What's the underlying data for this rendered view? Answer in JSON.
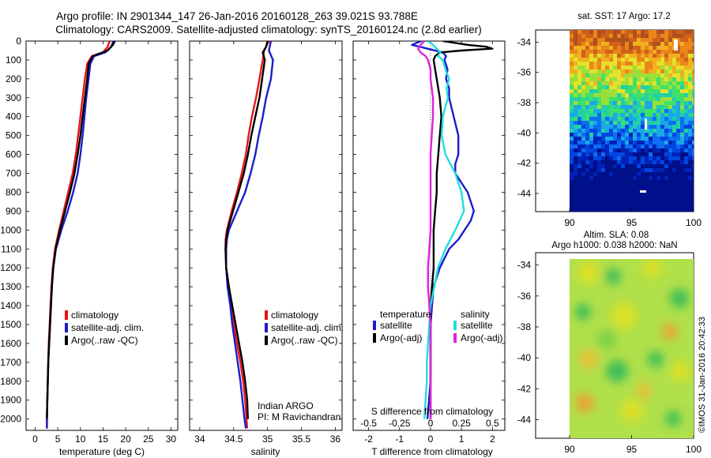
{
  "header": {
    "line1": "Argo profile: IN 2901344_147 26-Jan-2016 20160128_263 39.021S 93.788E",
    "line2": "Climatology: CARS2009. Satellite-adjusted climatology: synTS_20160124.nc (2.8d earlier)"
  },
  "colors": {
    "climatology": "#e8141b",
    "satellite": "#1c1ccc",
    "argo": "#000000",
    "sal_sat": "#22dddd",
    "sal_argo": "#dd22dd"
  },
  "shared_y_ticks": [
    "0",
    "100",
    "200",
    "300",
    "400",
    "500",
    "600",
    "700",
    "800",
    "900",
    "1000",
    "1100",
    "1200",
    "1300",
    "1400",
    "1500",
    "1600",
    "1700",
    "1800",
    "1900",
    "2000"
  ],
  "panels": {
    "temperature": {
      "xlabel": "temperature (deg C)",
      "xticks": [
        "0",
        "5",
        "10",
        "15",
        "20",
        "25",
        "30"
      ],
      "legend": [
        "climatology",
        "satellite-adj. clim.",
        "Argo(..raw -QC)"
      ]
    },
    "salinity": {
      "xlabel": "salinity",
      "xticks": [
        "34",
        "34.5",
        "35",
        "35.5",
        "36"
      ],
      "legend": [
        "climatology",
        "satellite-adj. clim.",
        "Argo(..raw -QC)"
      ],
      "note1": "Indian ARGO",
      "note2": "PI: M Ravichandran"
    },
    "difference": {
      "xlabel": "T difference from climatology",
      "xticks": [
        "-2",
        "-1",
        "0",
        "1",
        "2"
      ],
      "top_label": "S difference from climatology",
      "top_ticks": [
        "-0.5",
        "-0.25",
        "0",
        "0.25",
        "0.5"
      ],
      "legend_t_title": "temperature",
      "legend_s_title": "salinity",
      "legend_t": [
        "satellite",
        "Argo(-adj)"
      ],
      "legend_s": [
        "satellite",
        "Argo(-adj)"
      ]
    },
    "sst_map": {
      "title": "sat. SST: 17 Argo: 17.2",
      "yticks": [
        "-34",
        "-36",
        "-38",
        "-40",
        "-42",
        "-44"
      ],
      "xticks": [
        "90",
        "95",
        "100"
      ]
    },
    "sla_map": {
      "title1": "Altim. SLA: 0.08",
      "title2": "Argo h1000: 0.038 h2000: NaN",
      "yticks": [
        "-34",
        "-36",
        "-38",
        "-40",
        "-42",
        "-44"
      ],
      "xticks": [
        "90",
        "95",
        "100"
      ]
    }
  },
  "footer_stamp": "©IMOS 31-Jan-2016 20:42:33",
  "chart_data": [
    {
      "type": "line",
      "title": "",
      "xlabel": "temperature (deg C)",
      "ylabel": "",
      "xlim": [
        -2,
        31.5
      ],
      "ylim": [
        2060,
        0
      ],
      "series": [
        {
          "name": "climatology",
          "color": "#e8141b",
          "y": [
            0,
            30,
            60,
            80,
            120,
            200,
            300,
            400,
            500,
            600,
            700,
            800,
            900,
            1000,
            1100,
            1200,
            1300,
            1400,
            1500,
            1600,
            1700,
            1800,
            1900,
            2000,
            2050
          ],
          "x": [
            16.5,
            16,
            15,
            12.5,
            11.5,
            11,
            10.5,
            10,
            9.5,
            9,
            8.3,
            7.3,
            6.3,
            5.3,
            4.4,
            3.9,
            3.6,
            3.4,
            3.2,
            3,
            2.9,
            2.8,
            2.7,
            2.6,
            2.6
          ]
        },
        {
          "name": "satellite-adj. clim.",
          "color": "#1c1ccc",
          "y": [
            0,
            30,
            60,
            80,
            120,
            200,
            300,
            400,
            500,
            600,
            700,
            800,
            900,
            1000,
            1100,
            1200,
            1300,
            1400,
            1500,
            1600,
            1700,
            1800,
            1900,
            2000,
            2050
          ],
          "x": [
            17.3,
            16.8,
            15.5,
            13,
            12.2,
            11.8,
            11.3,
            10.9,
            10.5,
            10,
            9.4,
            8.4,
            7.2,
            5.8,
            4.6,
            4,
            3.7,
            3.5,
            3.3,
            3.1,
            2.9,
            2.8,
            2.7,
            2.6,
            2.6
          ]
        },
        {
          "name": "Argo(..raw -QC)",
          "color": "#000000",
          "y": [
            0,
            20,
            50,
            80,
            120,
            200,
            300,
            400,
            500,
            600,
            700,
            800,
            900,
            1000,
            1100,
            1200,
            1300,
            1400,
            1500,
            1600,
            1700,
            1800,
            1900,
            2000
          ],
          "x": [
            17.6,
            17.2,
            16,
            12.7,
            11.8,
            11.5,
            11,
            10.5,
            10,
            9.4,
            8.7,
            7.7,
            6.6,
            5.5,
            4.5,
            4,
            3.7,
            3.5,
            3.3,
            3.1,
            2.9,
            2.8,
            2.7,
            2.6
          ]
        }
      ]
    },
    {
      "type": "line",
      "title": "",
      "xlabel": "salinity",
      "ylabel": "",
      "xlim": [
        33.85,
        36.1
      ],
      "ylim": [
        2060,
        0
      ],
      "series": [
        {
          "name": "climatology",
          "color": "#e8141b",
          "y": [
            0,
            50,
            100,
            200,
            300,
            400,
            500,
            600,
            700,
            800,
            900,
            1000,
            1050,
            1100,
            1200,
            1300,
            1400,
            1500,
            1600,
            1700,
            1800,
            1900,
            2000,
            2050
          ],
          "x": [
            35.02,
            34.95,
            34.93,
            34.88,
            34.83,
            34.77,
            34.72,
            34.68,
            34.62,
            34.55,
            34.47,
            34.4,
            34.38,
            34.38,
            34.39,
            34.42,
            34.46,
            34.5,
            34.55,
            34.6,
            34.64,
            34.67,
            34.69,
            34.7
          ]
        },
        {
          "name": "satellite-adj. clim.",
          "color": "#1c1ccc",
          "y": [
            0,
            50,
            100,
            200,
            300,
            400,
            500,
            600,
            700,
            800,
            900,
            1000,
            1050,
            1100,
            1200,
            1300,
            1400,
            1500,
            1600,
            1700,
            1800,
            1900,
            2000,
            2050
          ],
          "x": [
            35.05,
            35.02,
            35.08,
            35.05,
            34.98,
            34.93,
            34.87,
            34.82,
            34.75,
            34.67,
            34.55,
            34.43,
            34.4,
            34.39,
            34.39,
            34.41,
            34.45,
            34.48,
            34.52,
            34.56,
            34.6,
            34.63,
            34.66,
            34.68
          ]
        },
        {
          "name": "Argo(..raw -QC)",
          "color": "#000000",
          "y": [
            0,
            30,
            60,
            100,
            200,
            300,
            400,
            500,
            600,
            700,
            800,
            900,
            1000,
            1050,
            1100,
            1200,
            1300,
            1400,
            1500,
            1600,
            1700,
            1800,
            1900,
            2000
          ],
          "x": [
            35.0,
            34.98,
            34.93,
            34.96,
            34.92,
            34.88,
            34.82,
            34.76,
            34.71,
            34.65,
            34.57,
            34.49,
            34.41,
            34.39,
            34.38,
            34.39,
            34.43,
            34.48,
            34.53,
            34.58,
            34.63,
            34.67,
            34.7,
            34.71
          ]
        }
      ]
    },
    {
      "type": "line",
      "title": "",
      "xlabel": "T difference from climatology",
      "ylabel": "",
      "xlim": [
        -2.5,
        2.4
      ],
      "ylim": [
        2060,
        0
      ],
      "series": [
        {
          "name": "temperature satellite",
          "color": "#1c1ccc",
          "y": [
            0,
            20,
            40,
            60,
            80,
            100,
            150,
            200,
            250,
            300,
            400,
            500,
            600,
            650,
            700,
            750,
            800,
            850,
            900,
            950,
            1000,
            1050,
            1100,
            1200,
            1300,
            1400,
            1500,
            1600,
            1700,
            1800,
            1900,
            2000
          ],
          "x": [
            -0.3,
            -0.6,
            -0.1,
            0.4,
            0.5,
            0.45,
            0.55,
            0.5,
            0.6,
            0.6,
            0.75,
            0.9,
            0.9,
            0.8,
            0.8,
            1.0,
            1.2,
            1.3,
            1.4,
            1.3,
            1.1,
            0.9,
            0.6,
            0.3,
            0.1,
            0.05,
            0.0,
            0.0,
            0.0,
            0.0,
            -0.05,
            -0.1
          ]
        },
        {
          "name": "temperature Argo(-adj)",
          "color": "#000000",
          "y": [
            0,
            20,
            30,
            40,
            50,
            60,
            80,
            100,
            150,
            200,
            300,
            400,
            500,
            600,
            700,
            800,
            900,
            1000,
            1100,
            1200,
            1300,
            1400,
            1500,
            1600,
            1700,
            1800,
            1900,
            2000
          ],
          "x": [
            0.4,
            1.2,
            1.8,
            2.0,
            1.0,
            0.3,
            0.15,
            0.1,
            0.15,
            0.2,
            0.3,
            0.35,
            0.3,
            0.25,
            0.2,
            0.2,
            0.15,
            0.1,
            0.1,
            0.1,
            0.05,
            0.0,
            0.0,
            0.0,
            0.0,
            0.0,
            0.0,
            0.0
          ]
        },
        {
          "name": "salinity satellite",
          "color": "#22dddd",
          "y": [
            0,
            20,
            40,
            60,
            80,
            100,
            150,
            200,
            250,
            300,
            400,
            500,
            600,
            700,
            800,
            900,
            1000,
            1100,
            1200,
            1300,
            1400,
            1500,
            1600,
            1700,
            1800,
            1900,
            2000
          ],
          "x": [
            -0.02,
            0.02,
            0.05,
            0.08,
            0.06,
            0.1,
            0.12,
            0.15,
            0.13,
            0.14,
            0.1,
            0.09,
            0.12,
            0.2,
            0.25,
            0.27,
            0.2,
            0.12,
            0.06,
            0.03,
            0.0,
            -0.01,
            -0.02,
            -0.03,
            -0.03,
            -0.04,
            -0.05
          ]
        },
        {
          "name": "salinity Argo(-adj)",
          "color": "#dd22dd",
          "y": [
            0,
            20,
            40,
            60,
            80,
            100,
            150,
            200,
            300,
            400,
            500,
            600,
            700,
            800,
            900,
            1000,
            1100,
            1200,
            1300,
            1400,
            1500,
            1600,
            1700,
            1800,
            1900,
            2000
          ],
          "x": [
            -0.05,
            -0.08,
            -0.1,
            -0.08,
            -0.04,
            -0.02,
            0.0,
            0.0,
            0.02,
            0.02,
            0.01,
            0.0,
            0.0,
            0.0,
            0.0,
            0.0,
            -0.01,
            -0.02,
            -0.02,
            -0.01,
            0.0,
            0.0,
            0.0,
            0.0,
            0.0,
            0.0
          ]
        }
      ]
    }
  ]
}
